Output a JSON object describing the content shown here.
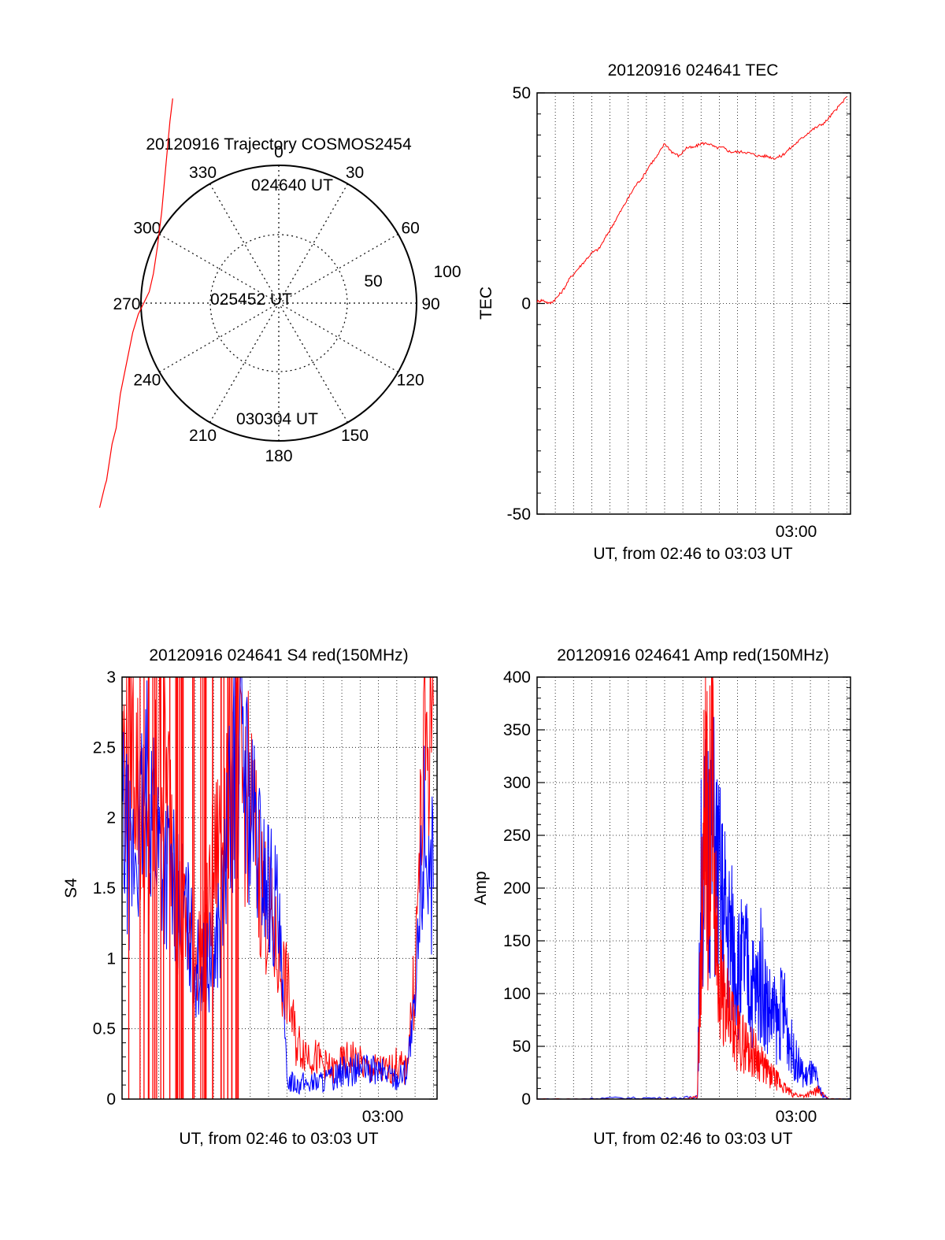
{
  "colors": {
    "red": "#ff0000",
    "blue": "#0000ff",
    "axis": "#000000",
    "grid": "#000000"
  },
  "chart_data": [
    {
      "id": "polar",
      "type": "polar-trajectory",
      "title": "20120916 Trajectory COSMOS2454",
      "azimuth_labels": [
        "0",
        "30",
        "60",
        "90",
        "120",
        "150",
        "180",
        "210",
        "240",
        "270",
        "300",
        "330"
      ],
      "elevation_labels": [
        "50",
        "100"
      ],
      "trajectory": {
        "color": "red",
        "points": [
          [
            11,
            90
          ],
          [
            9,
            80
          ],
          [
            6,
            60
          ],
          [
            3,
            40
          ],
          [
            0,
            25
          ],
          [
            -3,
            13
          ],
          [
            -6,
            5
          ],
          [
            -10,
            0
          ],
          [
            -14,
            -5
          ],
          [
            -18,
            -13
          ],
          [
            -22,
            -25
          ],
          [
            -27,
            -40
          ],
          [
            -30,
            -55
          ],
          [
            -33,
            -62
          ],
          [
            -35,
            -70
          ],
          [
            -37,
            -78
          ],
          [
            -38,
            -80
          ],
          [
            -40,
            -85
          ],
          [
            -42,
            -90
          ]
        ],
        "labels": [
          {
            "text": "024640 UT"
          },
          {
            "text": "025452 UT"
          },
          {
            "text": "030304 UT"
          }
        ]
      }
    },
    {
      "id": "tec",
      "type": "line",
      "title": "20120916 024641 TEC",
      "ylabel": "TEC",
      "xlabel": "UT, from 02:46 to 03:03 UT",
      "ylim": [
        -50,
        50
      ],
      "xlim": [
        0,
        17.2
      ],
      "yticks": [
        "-50",
        "0",
        "50"
      ],
      "xtick_label": "03:00",
      "series": [
        {
          "color": "red",
          "x": [
            0,
            0.3,
            0.7,
            1.0,
            1.4,
            1.8,
            2.2,
            2.6,
            3.0,
            3.4,
            3.8,
            4.2,
            4.6,
            5.0,
            5.4,
            5.8,
            6.2,
            6.6,
            7.0,
            7.4,
            7.8,
            8.2,
            8.6,
            9.0,
            9.4,
            9.8,
            10.2,
            10.6,
            11.0,
            11.4,
            11.8,
            12.2,
            12.6,
            13.0,
            13.4,
            13.8,
            14.2,
            14.6,
            15.0,
            15.4,
            15.8,
            16.2,
            16.6,
            17.0
          ],
          "y": [
            0.5,
            0.8,
            0,
            1,
            3,
            6,
            8,
            10,
            12,
            13,
            16,
            19,
            22,
            25,
            28,
            30,
            33,
            35,
            38,
            36,
            35,
            37,
            37,
            38,
            38,
            37,
            37,
            36,
            36,
            36,
            35.5,
            35,
            35,
            34.5,
            35,
            36.5,
            38,
            39.5,
            41,
            42,
            43,
            45,
            47,
            49
          ]
        }
      ]
    },
    {
      "id": "s4",
      "type": "line",
      "title": "20120916 024641 S4 red(150MHz)",
      "ylabel": "S4",
      "xlabel": "UT, from 02:46 to 03:03 UT",
      "ylim": [
        0,
        3
      ],
      "xlim": [
        0,
        17.2
      ],
      "yticks": [
        "0",
        "0.5",
        "1",
        "1.5",
        "2",
        "2.5",
        "3"
      ],
      "xtick_label": "03:00",
      "series": [
        {
          "color": "red",
          "x": [
            0,
            0.5,
            1,
            1.5,
            2,
            2.5,
            3,
            3.5,
            4,
            4.5,
            5,
            5.5,
            6,
            6.5,
            7,
            7.5,
            8,
            8.5,
            9,
            9.5,
            10,
            10.5,
            11,
            11.5,
            12,
            12.5,
            13,
            13.5,
            14,
            14.5,
            15,
            15.5,
            16,
            16.5,
            17
          ],
          "y": [
            2.3,
            2.8,
            2.0,
            1.6,
            2.5,
            2.2,
            1.4,
            1.2,
            1.0,
            1.1,
            1.6,
            2.0,
            2.4,
            2.2,
            2.1,
            1.6,
            1.3,
            1.0,
            0.8,
            0.4,
            0.35,
            0.3,
            0.25,
            0.2,
            0.25,
            0.3,
            0.25,
            0.2,
            0.22,
            0.2,
            0.25,
            0.2,
            0.9,
            2.5,
            2.8
          ]
        },
        {
          "color": "blue",
          "x": [
            0,
            0.5,
            1,
            1.5,
            2,
            2.5,
            3,
            3.5,
            4,
            4.5,
            5,
            5.5,
            6,
            6.5,
            7,
            7.5,
            8,
            8.5,
            9,
            9.5,
            10,
            10.5,
            11,
            11.5,
            12,
            12.5,
            13,
            13.5,
            14,
            14.5,
            15,
            15.5,
            16,
            16.5,
            17
          ],
          "y": [
            2.0,
            1.6,
            1.9,
            2.3,
            1.8,
            1.6,
            1.5,
            1.3,
            0.95,
            0.9,
            1.0,
            1.4,
            2.2,
            2.6,
            2.0,
            1.7,
            1.5,
            1.3,
            0.15,
            0.12,
            0.11,
            0.12,
            0.13,
            0.15,
            0.2,
            0.2,
            0.22,
            0.2,
            0.2,
            0.18,
            0.15,
            0.2,
            0.6,
            2.0,
            1.5
          ]
        }
      ]
    },
    {
      "id": "amp",
      "type": "line",
      "title": "20120916 024641 Amp red(150MHz)",
      "ylabel": "Amp",
      "xlabel": "UT, from 02:46 to 03:03 UT",
      "ylim": [
        0,
        400
      ],
      "xlim": [
        0,
        17.2
      ],
      "yticks": [
        "0",
        "50",
        "100",
        "150",
        "200",
        "250",
        "300",
        "350",
        "400"
      ],
      "xtick_label": "03:00",
      "series": [
        {
          "color": "blue",
          "x": [
            0,
            2,
            4,
            6,
            8,
            8.8,
            9.0,
            9.3,
            9.6,
            9.9,
            10.2,
            10.5,
            10.8,
            11.1,
            11.4,
            11.7,
            12.0,
            12.3,
            12.6,
            12.9,
            13.2,
            13.5,
            13.8,
            14.1,
            14.4,
            14.7,
            15.0,
            15.3,
            15.6,
            16.0,
            17.2
          ],
          "y": [
            0,
            0,
            1,
            1,
            1,
            3,
            200,
            240,
            260,
            210,
            180,
            160,
            140,
            120,
            130,
            110,
            100,
            120,
            90,
            80,
            70,
            90,
            60,
            40,
            30,
            20,
            25,
            20,
            5,
            0,
            0
          ]
        },
        {
          "color": "red",
          "x": [
            0,
            2,
            4,
            6,
            8,
            8.8,
            9.0,
            9.2,
            9.4,
            9.6,
            9.8,
            10.0,
            10.3,
            10.6,
            10.9,
            11.2,
            11.5,
            11.8,
            12.1,
            12.4,
            12.7,
            13.0,
            13.3,
            13.6,
            14.0,
            14.5,
            15.0,
            15.4,
            16.0,
            17.2
          ],
          "y": [
            0,
            0,
            0,
            0,
            0,
            2,
            150,
            350,
            200,
            330,
            160,
            120,
            90,
            70,
            60,
            55,
            50,
            45,
            40,
            30,
            25,
            20,
            15,
            10,
            5,
            3,
            5,
            8,
            0,
            0
          ]
        }
      ]
    }
  ]
}
